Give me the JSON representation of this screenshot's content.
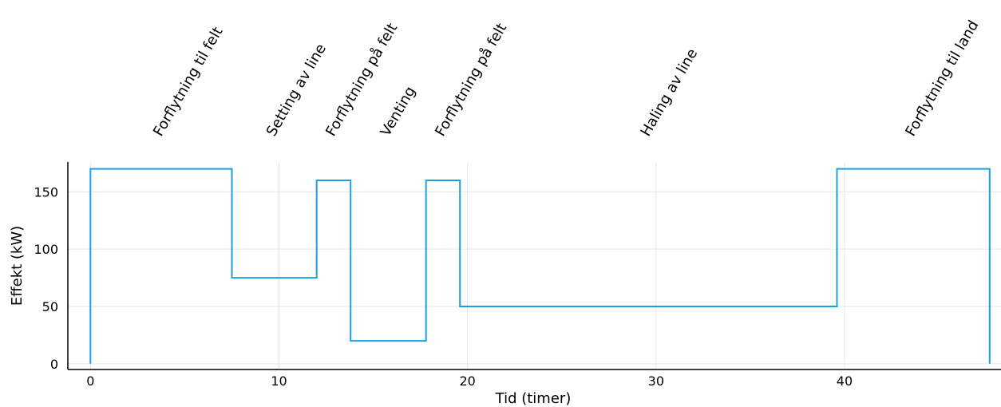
{
  "chart_data": {
    "type": "line",
    "step": true,
    "xlabel": "Tid (timer)",
    "ylabel": "Effekt (kW)",
    "xlim": [
      -1.2,
      48.3
    ],
    "ylim": [
      -5,
      176
    ],
    "xticks": [
      0,
      10,
      20,
      30,
      40
    ],
    "yticks": [
      0,
      50,
      100,
      150
    ],
    "grid": true,
    "legend": "none",
    "line_color": "#1ba1e2",
    "series": [
      {
        "x": [
          0,
          0,
          7.5,
          7.5,
          12.0,
          12.0,
          13.8,
          13.8,
          17.8,
          17.8,
          19.6,
          19.6,
          39.6,
          39.6,
          47.7,
          47.7
        ],
        "y": [
          0,
          170,
          170,
          75,
          75,
          160,
          160,
          20,
          20,
          160,
          160,
          50,
          50,
          170,
          170,
          0
        ]
      }
    ],
    "annotations": [
      {
        "text": "Forflytning til felt",
        "x": 3.75
      },
      {
        "text": "Setting av line",
        "x": 9.75
      },
      {
        "text": "Forflytning på felt",
        "x": 12.9
      },
      {
        "text": "Venting",
        "x": 15.8
      },
      {
        "text": "Forflytning på felt",
        "x": 18.7
      },
      {
        "text": "Haling av line",
        "x": 29.6
      },
      {
        "text": "Forflytning til land",
        "x": 43.65
      }
    ]
  }
}
